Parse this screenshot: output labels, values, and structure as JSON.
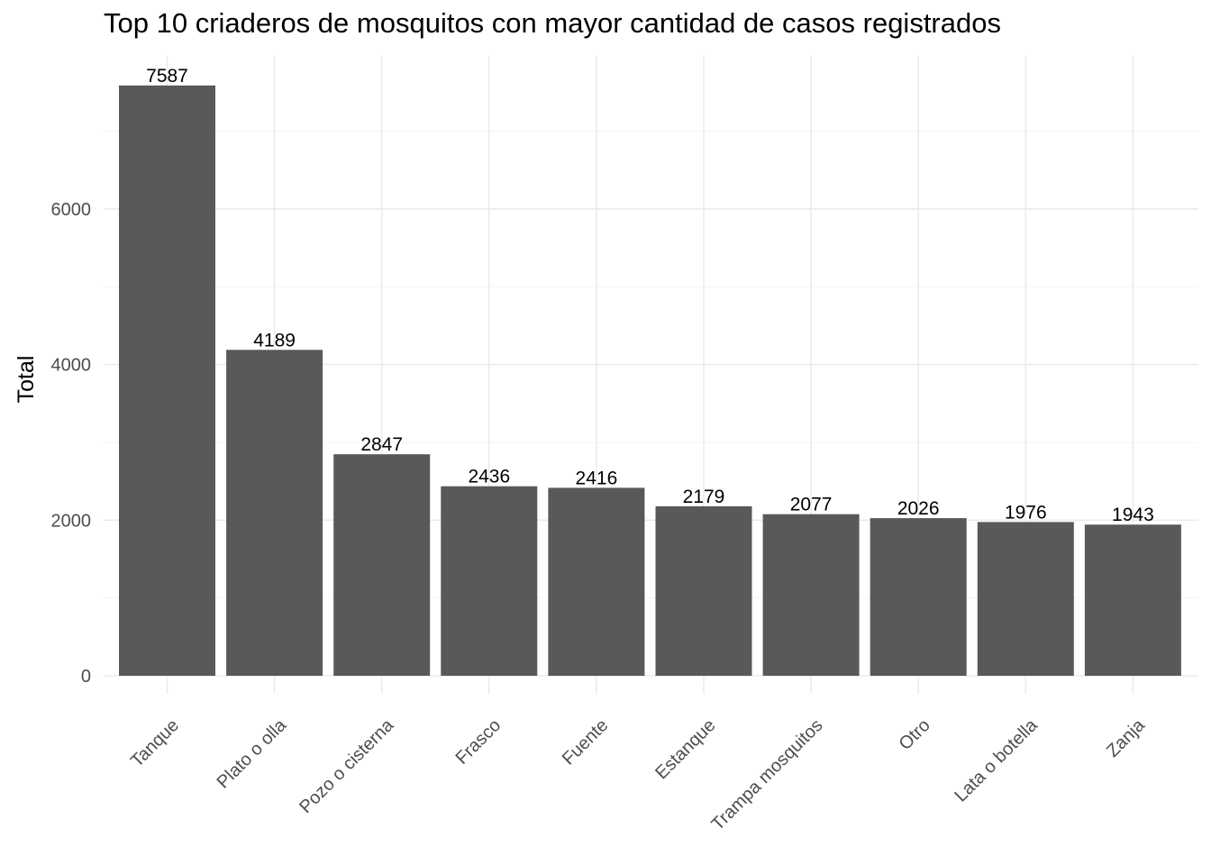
{
  "chart_data": {
    "type": "bar",
    "title": "Top 10 criaderos de mosquitos con mayor cantidad de casos registrados",
    "xlabel": "",
    "ylabel": "Total",
    "categories": [
      "Tanque",
      "Plato o olla",
      "Pozo o cisterna",
      "Frasco",
      "Fuente",
      "Estanque",
      "Trampa mosquitos",
      "Otro",
      "Lata o botella",
      "Zanja"
    ],
    "values": [
      7587,
      4189,
      2847,
      2436,
      2416,
      2179,
      2077,
      2026,
      1976,
      1943
    ],
    "ylim": [
      0,
      8000
    ],
    "yticks": [
      0,
      2000,
      4000,
      6000
    ],
    "y_minor_ticks": [
      1000,
      3000,
      5000,
      7000
    ],
    "grid": true,
    "legend": "none",
    "colors": {
      "bar": "#595959",
      "grid_major": "#ebebeb",
      "grid_minor": "#f4f4f4",
      "tick_text": "#4d4d4d",
      "text": "#000000"
    }
  }
}
